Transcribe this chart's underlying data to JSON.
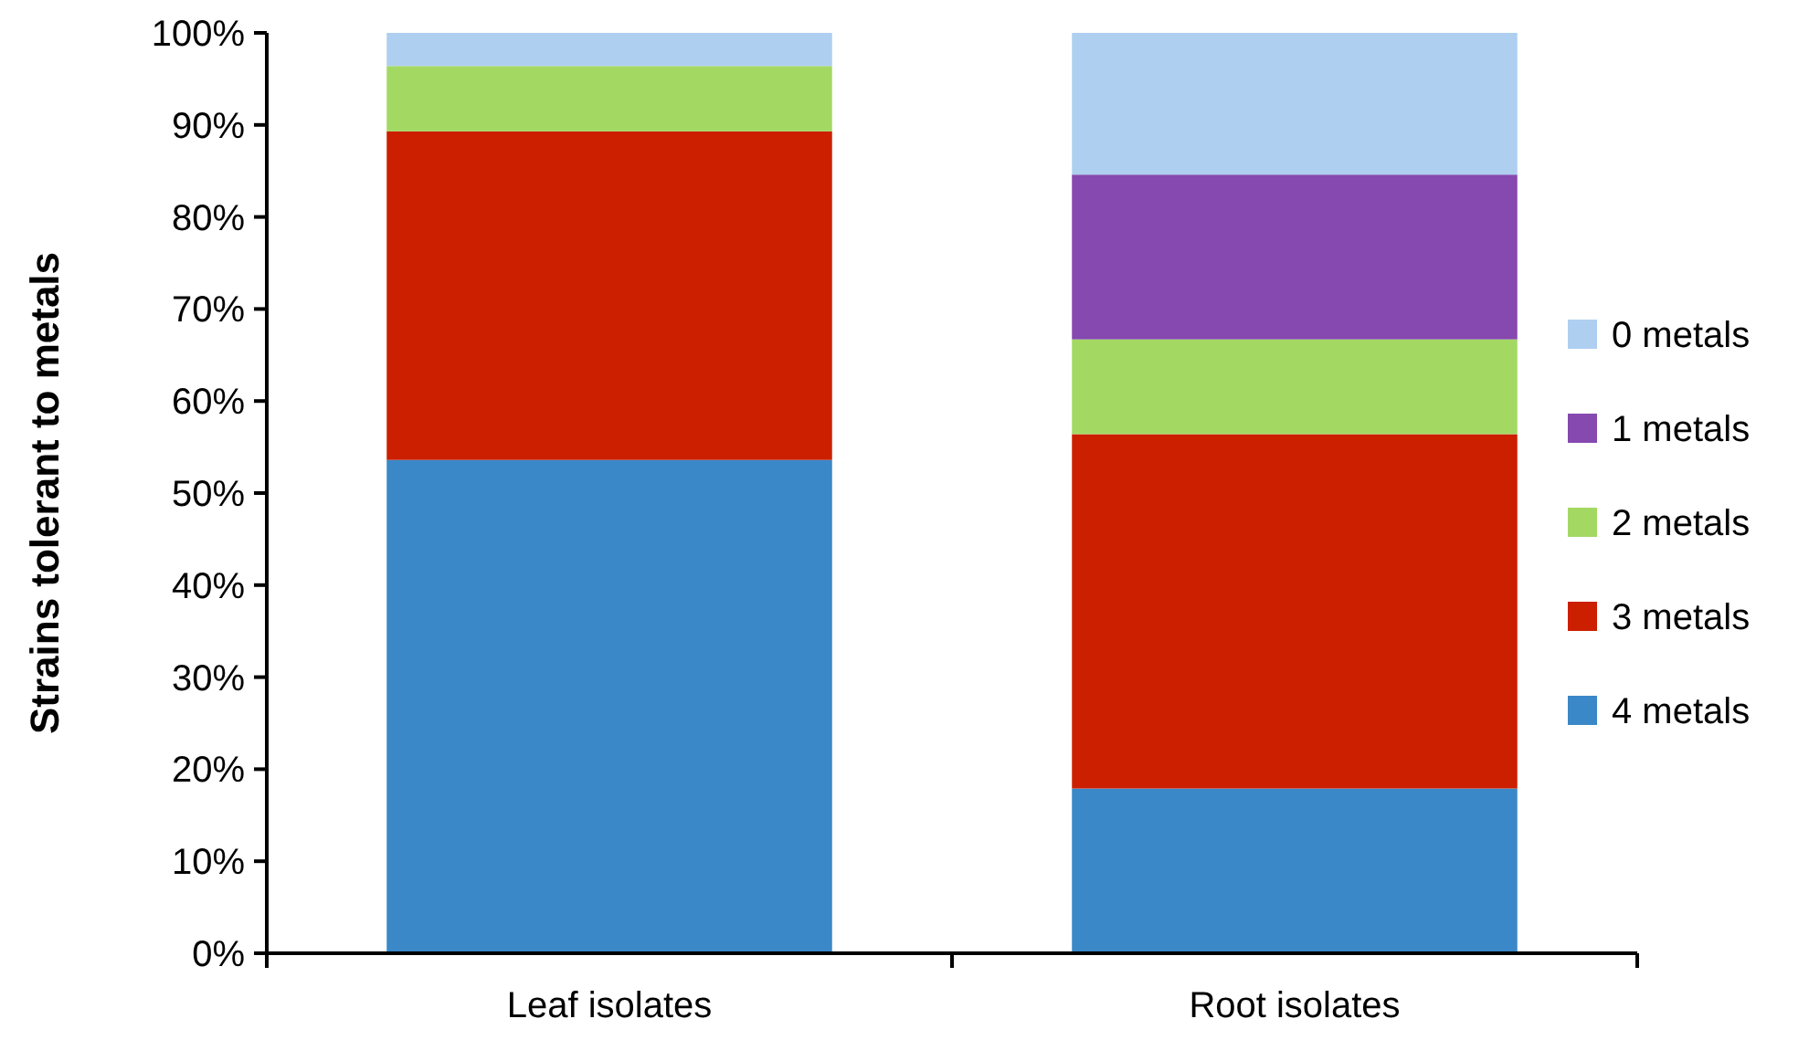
{
  "chart_data": {
    "type": "bar",
    "stacked": true,
    "ylabel": "Strains tolerant to metals",
    "categories": [
      "Leaf isolates",
      "Root isolates"
    ],
    "series": [
      {
        "name": "4 metals",
        "color": "#3a88c8",
        "values": [
          53.6,
          17.9
        ]
      },
      {
        "name": "3 metals",
        "color": "#cc1f00",
        "values": [
          35.7,
          38.5
        ]
      },
      {
        "name": "2 metals",
        "color": "#a3d963",
        "values": [
          7.1,
          10.3
        ]
      },
      {
        "name": "1 metals",
        "color": "#8549b0",
        "values": [
          0,
          17.9
        ]
      },
      {
        "name": "0 metals",
        "color": "#aecff0",
        "values": [
          3.6,
          15.4
        ]
      }
    ],
    "ylim": [
      0,
      100
    ],
    "yticks": [
      {
        "value": 0,
        "label": "0%"
      },
      {
        "value": 10,
        "label": "10%"
      },
      {
        "value": 20,
        "label": "20%"
      },
      {
        "value": 30,
        "label": "30%"
      },
      {
        "value": 40,
        "label": "40%"
      },
      {
        "value": 50,
        "label": "50%"
      },
      {
        "value": 60,
        "label": "60%"
      },
      {
        "value": 70,
        "label": "70%"
      },
      {
        "value": 80,
        "label": "80%"
      },
      {
        "value": 90,
        "label": "90%"
      },
      {
        "value": 100,
        "label": "100%"
      }
    ],
    "grid": false,
    "legend": "right"
  }
}
